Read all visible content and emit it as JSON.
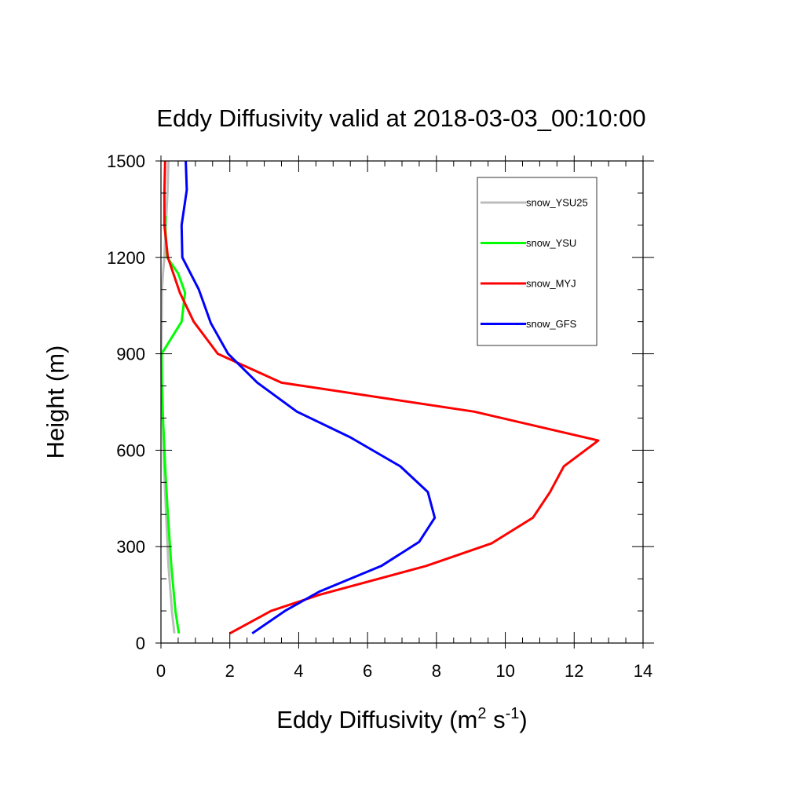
{
  "chart_data": {
    "type": "line",
    "title": "Eddy Diffusivity valid at 2018-03-03_00:10:00",
    "xlabel": {
      "base": "Eddy Diffusivity (m",
      "sup1": "2",
      "mid": " s",
      "sup2": "-1",
      "end": ")"
    },
    "ylabel": "Height (m)",
    "xlim": [
      0,
      14
    ],
    "ylim": [
      0,
      1500
    ],
    "xticks": [
      0,
      2,
      4,
      6,
      8,
      10,
      12,
      14
    ],
    "yticks": [
      0,
      300,
      600,
      900,
      1200,
      1500
    ],
    "legend_position": "top-right",
    "series": [
      {
        "name": "snow_YSU25",
        "color": "#bdbdbd",
        "x": [
          0.39,
          0.32,
          0.22,
          0.15,
          0.09,
          0.05,
          0.02,
          0.01,
          0.02,
          0.03,
          0.06,
          0.1,
          0.14,
          0.19,
          0.22
        ],
        "y": [
          30,
          100,
          240,
          400,
          550,
          700,
          800,
          900,
          1000,
          1100,
          1150,
          1200,
          1300,
          1400,
          1500
        ]
      },
      {
        "name": "snow_YSU",
        "color": "#00ff00",
        "x": [
          0.52,
          0.42,
          0.3,
          0.2,
          0.12,
          0.06,
          0.03,
          0.02,
          0.6,
          0.7,
          0.5,
          0.18,
          0.12,
          0.13
        ],
        "y": [
          30,
          100,
          240,
          400,
          550,
          700,
          800,
          900,
          1000,
          1090,
          1150,
          1200,
          1300,
          1330
        ]
      },
      {
        "name": "snow_MYJ",
        "color": "#ff0000",
        "x": [
          2.0,
          3.2,
          4.6,
          7.7,
          9.6,
          10.8,
          11.3,
          11.7,
          12.7,
          9.1,
          3.5,
          1.65,
          0.95,
          0.55,
          0.2,
          0.1,
          0.1,
          0.12
        ],
        "y": [
          30,
          100,
          150,
          240,
          310,
          390,
          470,
          550,
          630,
          720,
          810,
          900,
          1000,
          1090,
          1200,
          1300,
          1400,
          1500
        ]
      },
      {
        "name": "snow_GFS",
        "color": "#0000ff",
        "x": [
          2.65,
          3.6,
          4.6,
          6.4,
          7.5,
          7.95,
          7.75,
          6.95,
          5.5,
          3.95,
          2.8,
          1.95,
          1.45,
          1.1,
          0.62,
          0.6,
          0.75,
          0.72
        ],
        "y": [
          30,
          100,
          160,
          240,
          315,
          390,
          470,
          550,
          640,
          720,
          810,
          900,
          995,
          1100,
          1200,
          1300,
          1410,
          1500
        ]
      }
    ]
  }
}
